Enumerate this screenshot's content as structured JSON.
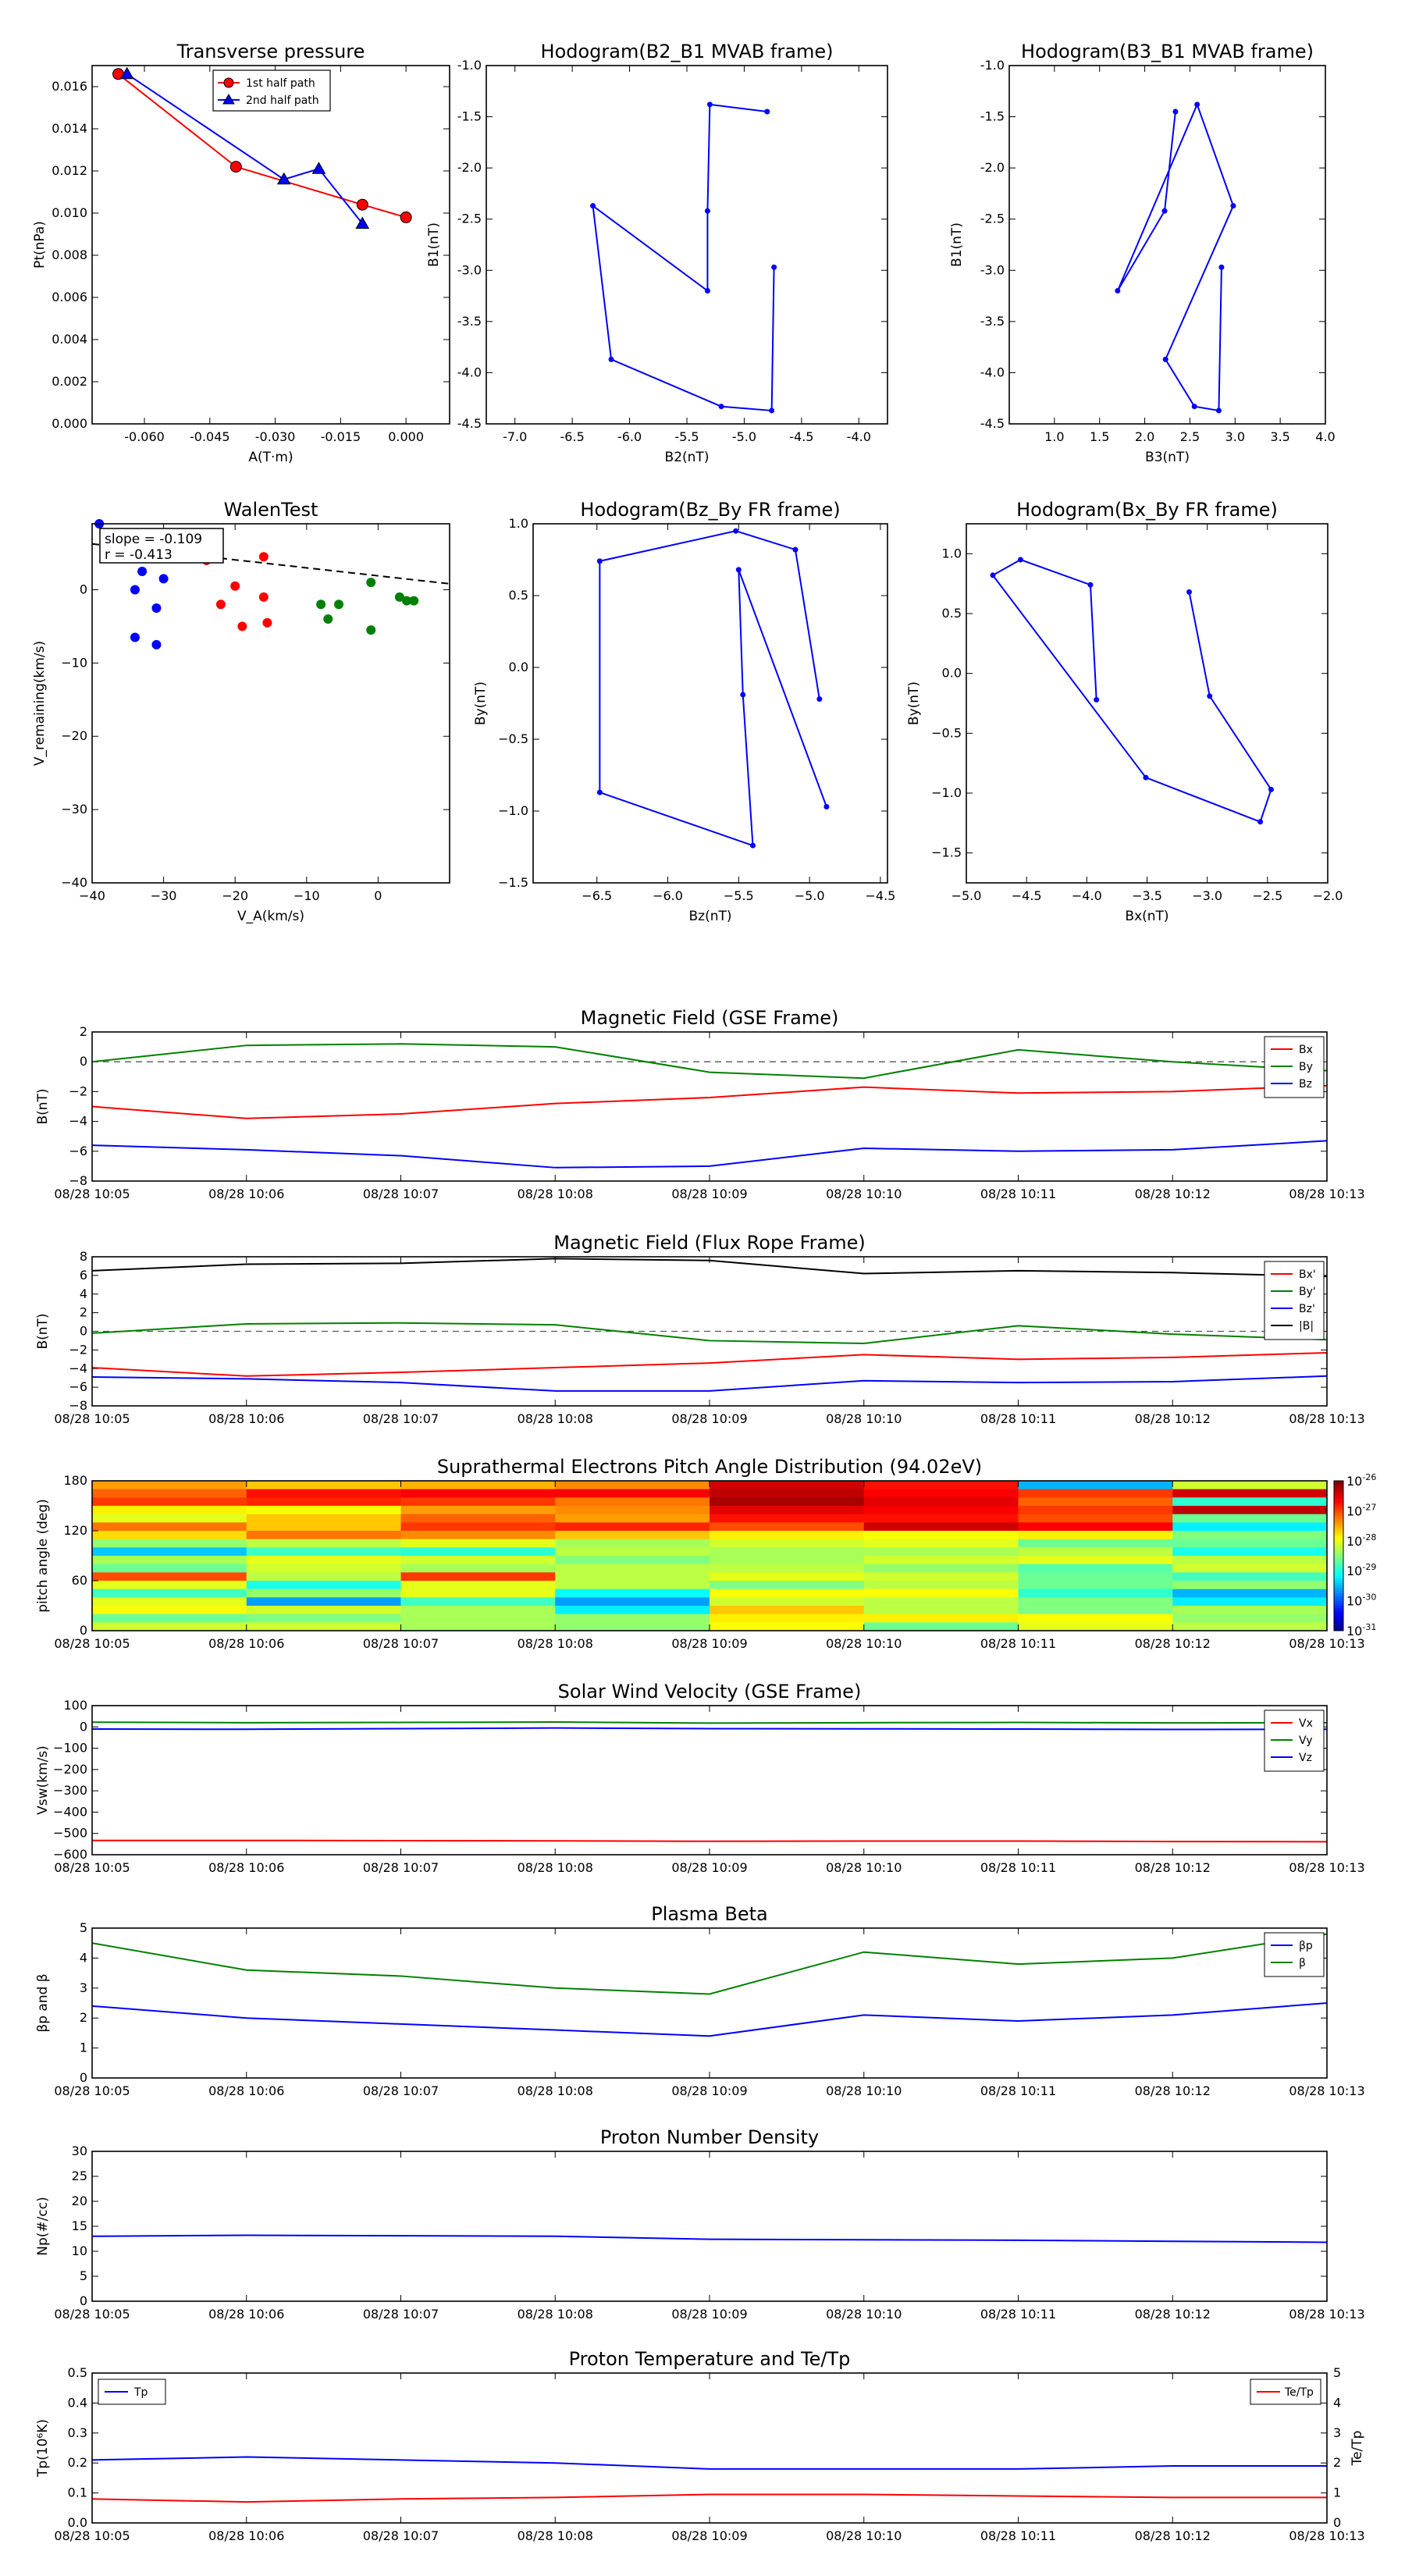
{
  "x_time_ticks": [
    "08/28 10:05",
    "08/28 10:06",
    "08/28 10:07",
    "08/28 10:08",
    "08/28 10:09",
    "08/28 10:10",
    "08/28 10:11",
    "08/28 10:12",
    "08/28 10:13"
  ],
  "chart_data": [
    {
      "id": "pt",
      "type": "line",
      "title": "Transverse pressure",
      "xlabel": "A(T·m)",
      "ylabel": "Pt(nPa)",
      "xlim": [
        -0.072,
        0.01
      ],
      "ylim": [
        0.0,
        0.017
      ],
      "xticks": [
        -0.06,
        -0.045,
        -0.03,
        -0.015,
        0.0
      ],
      "xtick_labels": [
        "-0.060",
        "-0.045",
        "-0.030",
        "-0.015",
        "0.000"
      ],
      "yticks": [
        0.0,
        0.002,
        0.004,
        0.006,
        0.008,
        0.01,
        0.012,
        0.014,
        0.016
      ],
      "ytick_labels": [
        "0.000",
        "0.002",
        "0.004",
        "0.006",
        "0.008",
        "0.010",
        "0.012",
        "0.014",
        "0.016"
      ],
      "legend": {
        "position": "upper center"
      },
      "series": [
        {
          "name": "1st half path",
          "color": "#ff0000",
          "marker": "circle",
          "x": [
            -0.066,
            -0.039,
            -0.01,
            0.0
          ],
          "y": [
            0.0166,
            0.0122,
            0.0104,
            0.0098
          ]
        },
        {
          "name": "2nd half path",
          "color": "#0000ff",
          "marker": "triangle",
          "x": [
            -0.064,
            -0.028,
            -0.02,
            -0.01
          ],
          "y": [
            0.0166,
            0.0116,
            0.0121,
            0.0095
          ]
        }
      ]
    },
    {
      "id": "h21",
      "type": "line",
      "title": "Hodogram(B2_B1 MVAB frame)",
      "xlabel": "B2(nT)",
      "ylabel": "B1(nT)",
      "xlim": [
        -7.25,
        -3.75
      ],
      "ylim": [
        -4.5,
        -1.0
      ],
      "xticks": [
        -7.0,
        -6.5,
        -6.0,
        -5.5,
        -5.0,
        -4.5,
        -4.0
      ],
      "xtick_labels": [
        "-7.0",
        "-6.5",
        "-6.0",
        "-5.5",
        "-5.0",
        "-4.5",
        "-4.0"
      ],
      "yticks": [
        -4.5,
        -4.0,
        -3.5,
        -3.0,
        -2.5,
        -2.0,
        -1.5,
        -1.0
      ],
      "ytick_labels": [
        "-4.5",
        "-4.0",
        "-3.5",
        "-3.0",
        "-2.5",
        "-2.0",
        "-1.5",
        "-1.0"
      ],
      "series": [
        {
          "color": "#0000ff",
          "x": [
            -4.8,
            -5.3,
            -5.32,
            -5.32,
            -6.32,
            -6.16,
            -5.2,
            -4.76,
            -4.74
          ],
          "y": [
            -1.45,
            -1.38,
            -2.42,
            -3.2,
            -2.37,
            -3.87,
            -4.33,
            -4.37,
            -2.97
          ]
        }
      ]
    },
    {
      "id": "h31",
      "type": "line",
      "title": "Hodogram(B3_B1 MVAB frame)",
      "xlabel": "B3(nT)",
      "ylabel": "B1(nT)",
      "xlim": [
        0.5,
        4.0
      ],
      "ylim": [
        -4.5,
        -1.0
      ],
      "xticks": [
        1.0,
        1.5,
        2.0,
        2.5,
        3.0,
        3.5,
        4.0
      ],
      "xtick_labels": [
        "1.0",
        "1.5",
        "2.0",
        "2.5",
        "3.0",
        "3.5",
        "4.0"
      ],
      "yticks": [
        -4.5,
        -4.0,
        -3.5,
        -3.0,
        -2.5,
        -2.0,
        -1.5,
        -1.0
      ],
      "ytick_labels": [
        "-4.5",
        "-4.0",
        "-3.5",
        "-3.0",
        "-2.5",
        "-2.0",
        "-1.5",
        "-1.0"
      ],
      "series": [
        {
          "color": "#0000ff",
          "x": [
            2.34,
            2.22,
            1.7,
            2.58,
            2.98,
            2.23,
            2.55,
            2.82,
            2.85
          ],
          "y": [
            -1.45,
            -2.42,
            -3.2,
            -1.38,
            -2.37,
            -3.87,
            -4.33,
            -4.37,
            -2.97
          ]
        }
      ]
    },
    {
      "id": "walen",
      "type": "scatter",
      "title": "WalenTest",
      "xlabel": "V_A(km/s)",
      "ylabel": "V_remaining(km/s)",
      "xlim": [
        -40,
        10
      ],
      "ylim": [
        -40,
        9
      ],
      "xticks": [
        -40,
        -30,
        -20,
        -10,
        0
      ],
      "xtick_labels": [
        "−40",
        "−30",
        "−20",
        "−10",
        "0"
      ],
      "yticks": [
        -40,
        -30,
        -20,
        -10,
        0
      ],
      "ytick_labels": [
        "−40",
        "−30",
        "−20",
        "−10",
        "0"
      ],
      "annotation": [
        "slope = -0.109",
        "r = -0.413"
      ],
      "fit": {
        "slope": -0.109,
        "intercept": 1.9
      },
      "series": [
        {
          "color": "#0000ff",
          "x": [
            -39,
            -38,
            -34,
            -33,
            -31,
            -30,
            -34,
            -31
          ],
          "y": [
            9,
            5,
            0,
            2.5,
            -2.5,
            1.5,
            -6.5,
            -7.5
          ]
        },
        {
          "color": "#ff0000",
          "x": [
            -24,
            -22,
            -20,
            -19,
            -16,
            -15.5,
            -16
          ],
          "y": [
            4,
            -2,
            0.5,
            -5,
            -1,
            -4.5,
            4.5
          ]
        },
        {
          "color": "#008000",
          "x": [
            -8,
            -7,
            -5.5,
            -1,
            -1,
            3,
            4,
            5
          ],
          "y": [
            -2,
            -4,
            -2,
            1,
            -5.5,
            -1,
            -1.5,
            -1.5
          ]
        }
      ]
    },
    {
      "id": "hzy",
      "type": "line",
      "title": "Hodogram(Bz_By FR frame)",
      "xlabel": "Bz(nT)",
      "ylabel": "By(nT)",
      "xlim": [
        -6.95,
        -4.45
      ],
      "ylim": [
        -1.5,
        1.0
      ],
      "xticks": [
        -6.5,
        -6.0,
        -5.5,
        -5.0,
        -4.5
      ],
      "xtick_labels": [
        "−6.5",
        "−6.0",
        "−5.5",
        "−5.0",
        "−4.5"
      ],
      "yticks": [
        -1.5,
        -1.0,
        -0.5,
        0.0,
        0.5,
        1.0
      ],
      "ytick_labels": [
        "−1.5",
        "−1.0",
        "−0.5",
        "0.0",
        "0.5",
        "1.0"
      ],
      "series": [
        {
          "color": "#0000ff",
          "x": [
            -4.93,
            -5.1,
            -5.52,
            -6.48,
            -6.48,
            -5.4,
            -5.47,
            -5.5,
            -4.88
          ],
          "y": [
            -0.22,
            0.82,
            0.95,
            0.74,
            -0.87,
            -1.24,
            -0.19,
            0.68,
            -0.97
          ]
        }
      ]
    },
    {
      "id": "hxy",
      "type": "line",
      "title": "Hodogram(Bx_By FR frame)",
      "xlabel": "Bx(nT)",
      "ylabel": "By(nT)",
      "xlim": [
        -5.0,
        -2.0
      ],
      "ylim": [
        -1.75,
        1.25
      ],
      "xticks": [
        -5.0,
        -4.5,
        -4.0,
        -3.5,
        -3.0,
        -2.5,
        -2.0
      ],
      "xtick_labels": [
        "−5.0",
        "−4.5",
        "−4.0",
        "−3.5",
        "−3.0",
        "−2.5",
        "−2.0"
      ],
      "yticks": [
        -1.5,
        -1.0,
        -0.5,
        0.0,
        0.5,
        1.0
      ],
      "ytick_labels": [
        "−1.5",
        "−1.0",
        "−0.5",
        "0.0",
        "0.5",
        "1.0"
      ],
      "series": [
        {
          "color": "#0000ff",
          "x": [
            -3.92,
            -3.97,
            -4.55,
            -4.78,
            -3.51,
            -2.56,
            -2.47,
            -2.98,
            -3.15
          ],
          "y": [
            -0.22,
            0.74,
            0.95,
            0.82,
            -0.87,
            -1.24,
            -0.97,
            -0.19,
            0.68
          ]
        }
      ]
    },
    {
      "id": "bgse",
      "type": "line",
      "title": "Magnetic Field (GSE Frame)",
      "ylabel": "B(nT)",
      "ylim": [
        -8,
        2
      ],
      "yticks": [
        -8,
        -6,
        -4,
        -2,
        0,
        2
      ],
      "ytick_labels": [
        "−8",
        "−6",
        "−4",
        "−2",
        "0",
        "2"
      ],
      "zero_line": true,
      "legend": {
        "position": "upper right"
      },
      "series": [
        {
          "name": "Bx",
          "color": "#ff0000",
          "y": [
            -3.0,
            -3.8,
            -3.5,
            -2.8,
            -2.4,
            -1.7,
            -2.1,
            -2.0,
            -1.6
          ]
        },
        {
          "name": "By",
          "color": "#008000",
          "y": [
            0.0,
            1.1,
            1.2,
            1.0,
            -0.7,
            -1.1,
            0.8,
            0.0,
            -0.6
          ]
        },
        {
          "name": "Bz",
          "color": "#0000ff",
          "y": [
            -5.6,
            -5.9,
            -6.3,
            -7.1,
            -7.0,
            -5.8,
            -6.0,
            -5.9,
            -5.3
          ]
        }
      ]
    },
    {
      "id": "bfr",
      "type": "line",
      "title": "Magnetic Field (Flux Rope Frame)",
      "ylabel": "B(nT)",
      "ylim": [
        -8,
        8
      ],
      "yticks": [
        -8,
        -6,
        -4,
        -2,
        0,
        2,
        4,
        6,
        8
      ],
      "ytick_labels": [
        "−8",
        "−6",
        "−4",
        "−2",
        "0",
        "2",
        "4",
        "6",
        "8"
      ],
      "zero_line": true,
      "legend": {
        "position": "upper right"
      },
      "series": [
        {
          "name": "Bx'",
          "color": "#ff0000",
          "y": [
            -3.9,
            -4.8,
            -4.4,
            -3.9,
            -3.4,
            -2.5,
            -3.0,
            -2.8,
            -2.3
          ]
        },
        {
          "name": "By'",
          "color": "#008000",
          "y": [
            -0.2,
            0.8,
            0.9,
            0.7,
            -1.0,
            -1.3,
            0.6,
            -0.3,
            -0.9
          ]
        },
        {
          "name": "Bz'",
          "color": "#0000ff",
          "y": [
            -4.9,
            -5.1,
            -5.5,
            -6.4,
            -6.4,
            -5.3,
            -5.5,
            -5.4,
            -4.8
          ]
        },
        {
          "name": "|B|",
          "color": "#000000",
          "y": [
            6.5,
            7.2,
            7.3,
            7.8,
            7.6,
            6.2,
            6.5,
            6.3,
            5.9
          ]
        }
      ]
    },
    {
      "id": "pad",
      "type": "heatmap",
      "title": "Suprathermal Electrons Pitch Angle Distribution (94.02eV)",
      "ylabel": "pitch angle (deg)",
      "ylim": [
        0,
        180
      ],
      "yticks": [
        0,
        60,
        120,
        180
      ],
      "ytick_labels": [
        "0",
        "60",
        "120",
        "180"
      ],
      "colorbar": {
        "label_base": "10",
        "exponents": [
          "-26",
          "-27",
          "-28",
          "-29",
          "-30",
          "-31"
        ]
      },
      "rows": 18,
      "cols": 8,
      "grid_log10": [
        [
          -27.4,
          -27.6,
          -27.5,
          -27.3,
          -26.4,
          -26.7,
          -29.5,
          -28.1
        ],
        [
          -27.1,
          -26.7,
          -26.6,
          -26.6,
          -26.3,
          -26.6,
          -26.9,
          -26.4
        ],
        [
          -26.9,
          -26.8,
          -26.9,
          -27.2,
          -26.2,
          -26.5,
          -27.1,
          -28.9
        ],
        [
          -27.8,
          -27.9,
          -27.4,
          -27.3,
          -26.5,
          -26.6,
          -26.9,
          -26.3
        ],
        [
          -28.0,
          -27.6,
          -27.1,
          -27.4,
          -26.7,
          -26.7,
          -27.0,
          -28.6
        ],
        [
          -27.2,
          -27.6,
          -26.9,
          -26.8,
          -27.0,
          -26.4,
          -26.6,
          -29.2
        ],
        [
          -27.7,
          -27.2,
          -27.3,
          -27.6,
          -27.8,
          -27.9,
          -27.8,
          -28.5
        ],
        [
          -28.4,
          -28.2,
          -28.0,
          -28.3,
          -28.1,
          -28.0,
          -28.6,
          -28.6
        ],
        [
          -29.4,
          -28.8,
          -28.9,
          -28.2,
          -28.3,
          -28.3,
          -28.2,
          -29.0
        ],
        [
          -28.3,
          -28.0,
          -28.1,
          -28.5,
          -28.3,
          -28.1,
          -28.0,
          -28.2
        ],
        [
          -28.6,
          -28.1,
          -28.3,
          -28.2,
          -28.2,
          -28.4,
          -28.7,
          -28.1
        ],
        [
          -27.0,
          -28.2,
          -26.9,
          -28.2,
          -28.0,
          -28.1,
          -28.6,
          -28.8
        ],
        [
          -28.0,
          -29.0,
          -28.0,
          -28.2,
          -28.5,
          -28.2,
          -28.6,
          -28.4
        ],
        [
          -28.8,
          -28.4,
          -28.0,
          -29.1,
          -27.9,
          -27.9,
          -28.9,
          -29.5
        ],
        [
          -28.0,
          -29.6,
          -28.8,
          -29.6,
          -28.1,
          -28.2,
          -28.5,
          -29.2
        ],
        [
          -27.9,
          -28.1,
          -28.3,
          -29.2,
          -27.6,
          -28.2,
          -28.5,
          -28.3
        ],
        [
          -28.6,
          -28.5,
          -28.3,
          -28.4,
          -27.8,
          -27.8,
          -27.9,
          -28.4
        ],
        [
          -28.1,
          -28.1,
          -28.3,
          -28.4,
          -27.9,
          -28.6,
          -28.0,
          -28.2
        ]
      ]
    },
    {
      "id": "vsw",
      "type": "line",
      "title": "Solar Wind Velocity (GSE Frame)",
      "ylabel": "Vsw(km/s)",
      "ylim": [
        -600,
        100
      ],
      "yticks": [
        -600,
        -500,
        -400,
        -300,
        -200,
        -100,
        0,
        100
      ],
      "ytick_labels": [
        "−600",
        "−500",
        "−400",
        "−300",
        "−200",
        "−100",
        "0",
        "100"
      ],
      "legend": {
        "position": "upper right"
      },
      "series": [
        {
          "name": "Vx",
          "color": "#ff0000",
          "y": [
            -533,
            -533,
            -534,
            -535,
            -537,
            -536,
            -536,
            -538,
            -539
          ]
        },
        {
          "name": "Vy",
          "color": "#008000",
          "y": [
            22,
            20,
            21,
            23,
            18,
            20,
            21,
            19,
            20
          ]
        },
        {
          "name": "Vz",
          "color": "#0000ff",
          "y": [
            -10,
            -11,
            -8,
            -5,
            -8,
            -9,
            -10,
            -12,
            -11
          ]
        }
      ]
    },
    {
      "id": "beta",
      "type": "line",
      "title": "Plasma Beta",
      "ylabel": "βp and β",
      "ylim": [
        0,
        5
      ],
      "yticks": [
        0,
        1,
        2,
        3,
        4,
        5
      ],
      "ytick_labels": [
        "0",
        "1",
        "2",
        "3",
        "4",
        "5"
      ],
      "legend": {
        "position": "upper right"
      },
      "series": [
        {
          "name": "βp",
          "color": "#0000ff",
          "y": [
            2.4,
            2.0,
            1.8,
            1.6,
            1.4,
            2.1,
            1.9,
            2.1,
            2.5
          ]
        },
        {
          "name": "β",
          "color": "#008000",
          "y": [
            4.5,
            3.6,
            3.4,
            3.0,
            2.8,
            4.2,
            3.8,
            4.0,
            4.8
          ]
        }
      ]
    },
    {
      "id": "np",
      "type": "line",
      "title": "Proton Number Density",
      "ylabel": "Np(#/cc)",
      "ylim": [
        0,
        30
      ],
      "yticks": [
        0,
        5,
        10,
        15,
        20,
        25,
        30
      ],
      "ytick_labels": [
        "0",
        "5",
        "10",
        "15",
        "20",
        "25",
        "30"
      ],
      "series": [
        {
          "color": "#0000ff",
          "y": [
            13.0,
            13.2,
            13.1,
            13.0,
            12.4,
            12.3,
            12.2,
            12.0,
            11.8
          ]
        }
      ]
    },
    {
      "id": "tp",
      "type": "line",
      "title": "Proton Temperature and Te/Tp",
      "ylabel": "Tp(10⁶K)",
      "ylabel_right": "Te/Tp",
      "ylim": [
        0,
        0.5
      ],
      "ylim_right": [
        0,
        5
      ],
      "yticks": [
        0,
        0.1,
        0.2,
        0.3,
        0.4,
        0.5
      ],
      "ytick_labels": [
        "0.0",
        "0.1",
        "0.2",
        "0.3",
        "0.4",
        "0.5"
      ],
      "yticks_right": [
        0,
        1,
        2,
        3,
        4,
        5
      ],
      "ytick_labels_right": [
        "0",
        "1",
        "2",
        "3",
        "4",
        "5"
      ],
      "series": [
        {
          "name": "Tp",
          "color": "#0000ff",
          "axis": "left",
          "y": [
            0.21,
            0.22,
            0.21,
            0.2,
            0.18,
            0.18,
            0.18,
            0.19,
            0.19
          ]
        },
        {
          "name": "Te/Tp",
          "color": "#ff0000",
          "axis": "right",
          "y": [
            0.8,
            0.7,
            0.8,
            0.85,
            0.95,
            0.95,
            0.9,
            0.85,
            0.85
          ]
        }
      ]
    }
  ]
}
